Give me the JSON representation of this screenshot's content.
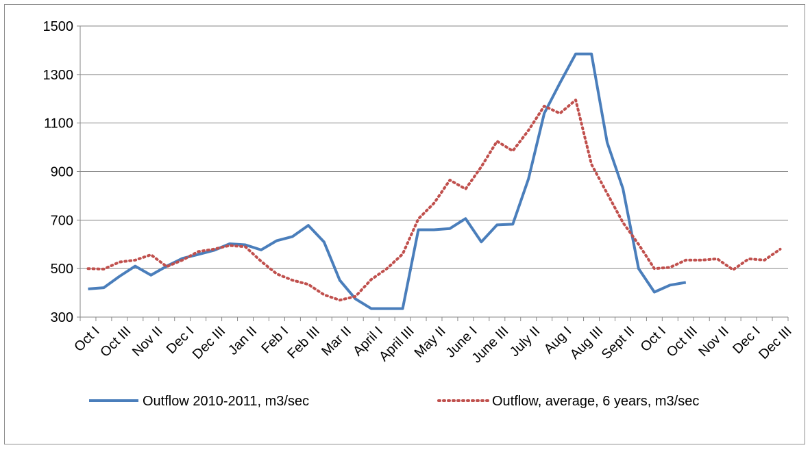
{
  "chart_data": {
    "type": "line",
    "categories": [
      "Oct I",
      null,
      "Oct III",
      null,
      "Nov II",
      null,
      "Dec I",
      null,
      "Dec III",
      null,
      "Jan II",
      null,
      "Feb I",
      null,
      "Feb III",
      null,
      "Mar II",
      null,
      "April I",
      null,
      "April III",
      null,
      "May II",
      null,
      "June I",
      null,
      "June III",
      null,
      "July II",
      null,
      "Aug I",
      null,
      "Aug III",
      null,
      "Sept II",
      null,
      "Oct I",
      null,
      "Oct III",
      null,
      "Nov II",
      null,
      "Dec I",
      null,
      "Dec III"
    ],
    "series": [
      {
        "name": "Outflow 2010-2011, m3/sec",
        "color": "#4a7ebb",
        "line_style": "solid",
        "values": [
          416,
          421,
          468,
          510,
          473,
          510,
          542,
          558,
          575,
          602,
          598,
          577,
          615,
          632,
          678,
          610,
          452,
          375,
          335,
          335,
          335,
          660,
          660,
          665,
          706,
          610,
          680,
          683,
          870,
          1140,
          1265,
          1385,
          1385,
          1020,
          830,
          500,
          403,
          432,
          443,
          null,
          null,
          null,
          null,
          null,
          null
        ]
      },
      {
        "name": "Outflow, average, 6 years, m3/sec",
        "color": "#c0504d",
        "line_style": "dotted",
        "values": [
          500,
          498,
          527,
          535,
          557,
          508,
          535,
          570,
          580,
          595,
          590,
          530,
          478,
          452,
          435,
          392,
          370,
          385,
          455,
          500,
          560,
          705,
          770,
          865,
          828,
          920,
          1025,
          985,
          1070,
          1170,
          1140,
          1195,
          930,
          810,
          690,
          600,
          500,
          505,
          535,
          535,
          540,
          495,
          540,
          535,
          580
        ]
      }
    ],
    "ylim": [
      300,
      1500
    ],
    "yticks": [
      300,
      500,
      700,
      900,
      1100,
      1300,
      1500
    ],
    "grid": true,
    "legend": "bottom"
  }
}
